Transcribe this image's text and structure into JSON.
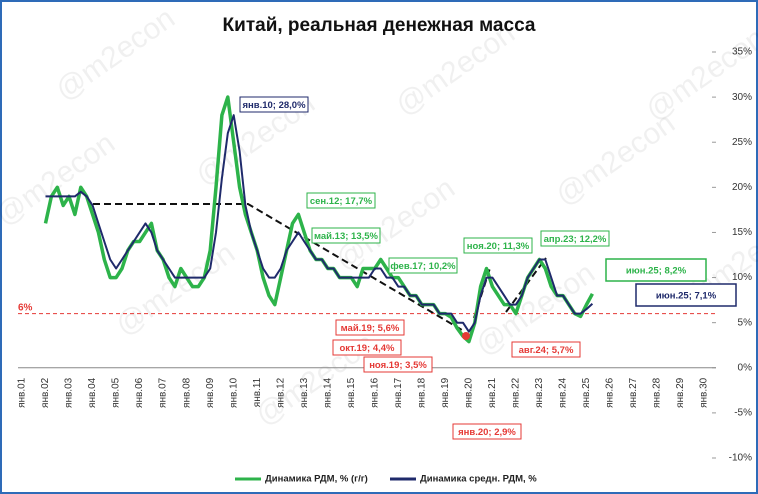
{
  "chart_data": {
    "type": "line",
    "title": "Китай, реальная денежная масса",
    "watermark": "@m2econ",
    "categories": [
      "янв.01",
      null,
      null,
      null,
      "янв.02",
      null,
      null,
      null,
      "янв.03",
      null,
      null,
      null,
      "янв.04",
      null,
      null,
      null,
      "янв.05",
      null,
      null,
      null,
      "янв.06",
      null,
      null,
      null,
      "янв.07",
      null,
      null,
      null,
      "янв.08",
      null,
      null,
      null,
      "янв.09",
      null,
      null,
      null,
      "янв.10",
      null,
      null,
      null,
      "янв.11",
      null,
      null,
      null,
      "янв.12",
      null,
      null,
      null,
      "янв.13",
      null,
      null,
      null,
      "янв.14",
      null,
      null,
      null,
      "янв.15",
      null,
      null,
      null,
      "янв.16",
      null,
      null,
      null,
      "янв.17",
      null,
      null,
      null,
      "янв.18",
      null,
      null,
      null,
      "янв.19",
      null,
      null,
      null,
      "янв.20",
      null,
      null,
      null,
      "янв.21",
      null,
      null,
      null,
      "янв.22",
      null,
      null,
      null,
      "янв.23",
      null,
      null,
      null,
      "янв.24",
      null,
      null,
      null,
      "янв.25",
      null,
      null,
      null,
      "янв.26",
      null,
      null,
      null,
      "янв.27",
      null,
      null,
      null,
      "янв.28",
      null,
      null,
      null,
      "янв.29",
      null,
      null,
      null,
      "янв.30",
      null,
      null,
      null
    ],
    "series": [
      {
        "name": "Динамика РДМ, % (г/г)",
        "color": "#2db34a",
        "values": [
          null,
          null,
          null,
          null,
          16,
          19,
          20,
          18,
          19,
          17,
          20,
          19,
          17,
          15,
          12,
          10,
          10,
          11,
          13,
          14,
          14,
          15,
          16,
          13,
          12,
          10,
          9,
          11,
          10,
          9,
          9,
          10,
          13,
          20,
          28,
          30,
          25,
          20,
          17,
          15,
          13,
          10,
          8,
          7,
          10,
          13,
          16,
          17,
          15,
          13,
          12,
          12,
          11,
          11,
          10,
          10,
          10,
          9,
          11,
          11,
          11,
          12,
          11,
          10,
          10,
          9,
          8,
          8,
          7,
          7,
          7,
          6,
          6,
          5.6,
          4.4,
          3.5,
          2.9,
          5,
          9,
          11,
          9,
          8,
          7,
          7,
          6,
          8,
          10,
          11,
          12,
          11,
          9,
          8,
          8,
          7,
          6,
          5.7,
          7,
          8.2,
          null,
          null,
          null,
          null,
          null,
          null,
          null,
          null,
          null,
          null,
          null,
          null,
          null,
          null,
          null,
          null,
          null,
          null,
          null,
          null,
          null,
          null
        ]
      },
      {
        "name": "Динамика средн. РДМ, %",
        "color": "#1f2a6b",
        "values": [
          null,
          null,
          null,
          null,
          19,
          19,
          19,
          19,
          19,
          19,
          19.5,
          19,
          18,
          16,
          14,
          12,
          11,
          12,
          13,
          14,
          15,
          16,
          15,
          13,
          12,
          11,
          10,
          10,
          10,
          10,
          10,
          10,
          11,
          15,
          21,
          26,
          28,
          24,
          18,
          15,
          13,
          11,
          10,
          10,
          11,
          13,
          14,
          15,
          14,
          13,
          12,
          12,
          11,
          11,
          10,
          10,
          10,
          10,
          10,
          10,
          11,
          11,
          10,
          10,
          9,
          9,
          8,
          8,
          7,
          7,
          7,
          6,
          6,
          6,
          5,
          5,
          4,
          5,
          8,
          10,
          10,
          9,
          8,
          7,
          7,
          8,
          10,
          11,
          12,
          12,
          10,
          8,
          8,
          7,
          6,
          6,
          6.5,
          7.1,
          null,
          null,
          null,
          null,
          null,
          null,
          null,
          null,
          null,
          null,
          null,
          null,
          null,
          null,
          null,
          null,
          null,
          null,
          null,
          null,
          null,
          null
        ]
      }
    ],
    "ylim": [
      -10,
      35
    ],
    "yticks": [
      {
        "value": -10,
        "label": "-10%"
      },
      {
        "value": -5,
        "label": "-5%"
      },
      {
        "value": 0,
        "label": "0%"
      },
      {
        "value": 5,
        "label": "5%"
      },
      {
        "value": 10,
        "label": "10%"
      },
      {
        "value": 15,
        "label": "15%"
      },
      {
        "value": 20,
        "label": "20%"
      },
      {
        "value": 25,
        "label": "25%"
      },
      {
        "value": 30,
        "label": "30%"
      },
      {
        "value": 35,
        "label": "35%"
      }
    ],
    "reference_line": {
      "value": 6,
      "label": "6%",
      "color": "#e53935"
    },
    "annotations": [
      "янв.10; 28,0%",
      "сен.12; 17,7%",
      "май.13; 13,5%",
      "фев.17; 10,2%",
      "ноя.20; 11,3%",
      "апр.23; 12,2%",
      "июн.25; 8,2%",
      "июн.25; 7,1%",
      "май.19; 5,6%",
      "окт.19; 4,4%",
      "ноя.19; 3,5%",
      "авг.24; 5,7%",
      "янв.20; 2,9%"
    ]
  }
}
